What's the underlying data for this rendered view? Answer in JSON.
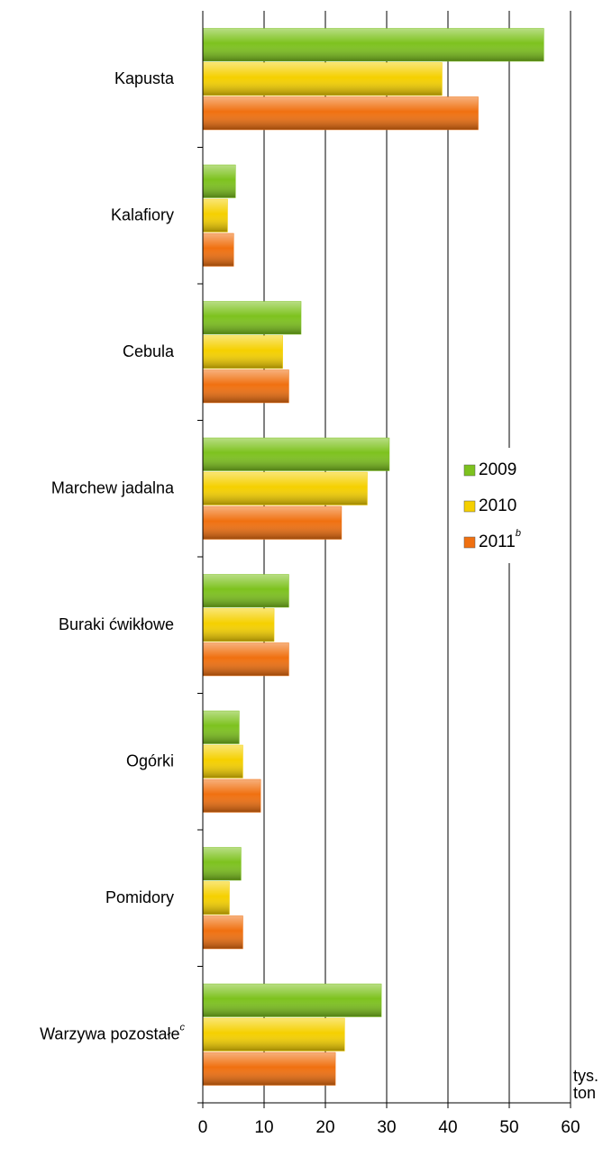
{
  "chart_data": {
    "type": "barh",
    "categories": [
      "Kapusta",
      "Kalafiory",
      "Cebula",
      "Marchew jadalna",
      "Buraki ćwikłowe",
      "Ogórki",
      "Pomidory",
      "Warzywa pozostałe"
    ],
    "category_superscripts": [
      null,
      null,
      null,
      null,
      null,
      null,
      null,
      "c"
    ],
    "series": [
      {
        "name": "2009",
        "color": "#7dc21e",
        "values": [
          55.6,
          5.3,
          16,
          30.4,
          14,
          5.9,
          6.2,
          29.1
        ]
      },
      {
        "name": "2010",
        "color": "#f5d000",
        "values": [
          39,
          4.0,
          13,
          26.8,
          11.6,
          6.5,
          4.3,
          23.1
        ]
      },
      {
        "name": "2011",
        "superscript": "b",
        "color": "#f07010",
        "values": [
          44.9,
          5.0,
          14,
          22.6,
          14,
          9.4,
          6.5,
          21.6
        ]
      }
    ],
    "xlim": [
      0,
      60
    ],
    "xticks": [
      0,
      10,
      20,
      30,
      40,
      50,
      60
    ],
    "x_label_lines": [
      "tys.",
      "ton"
    ],
    "grid": true
  }
}
